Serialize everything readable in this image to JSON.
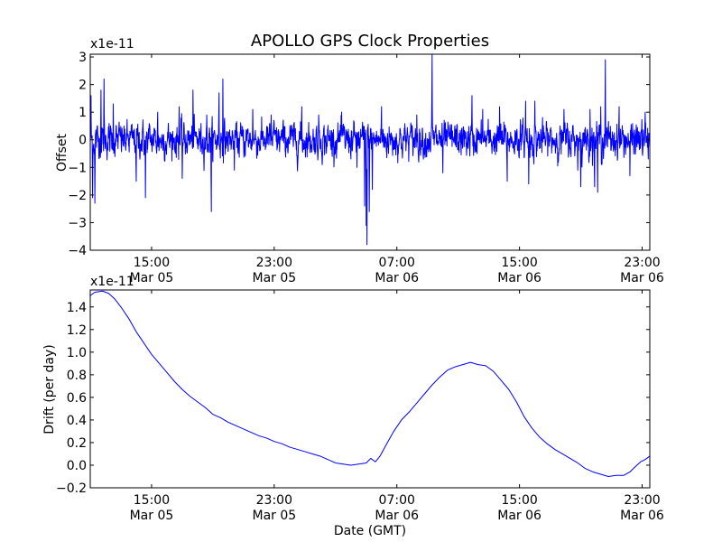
{
  "chart_data": [
    {
      "type": "line",
      "title": "APOLLO GPS Clock Properties",
      "ylabel": "Offset",
      "xlabel": "",
      "scale_label": "x1e-11",
      "x_unit": "hours since 11:00 Mar 05 (GMT)",
      "xlim": [
        0,
        36.5
      ],
      "ylim": [
        -4,
        3.1
      ],
      "yticks": [
        -4,
        -3,
        -2,
        -1,
        0,
        1,
        2,
        3
      ],
      "ytick_labels": [
        "−4",
        "−3",
        "−2",
        "−1",
        "0",
        "1",
        "2",
        "3"
      ],
      "xticks": [
        {
          "x": 4,
          "time": "15:00",
          "date": "Mar 05"
        },
        {
          "x": 12,
          "time": "23:00",
          "date": "Mar 05"
        },
        {
          "x": 20,
          "time": "07:00",
          "date": "Mar 06"
        },
        {
          "x": 28,
          "time": "15:00",
          "date": "Mar 06"
        },
        {
          "x": 36,
          "time": "23:00",
          "date": "Mar 06"
        }
      ],
      "color": "#0000ff",
      "series": [
        {
          "name": "Offset",
          "noise_sigma": 0.35,
          "spikes": [
            [
              0.05,
              1.6
            ],
            [
              0.15,
              -2.1
            ],
            [
              0.3,
              -2.3
            ],
            [
              0.7,
              1.8
            ],
            [
              0.9,
              2.2
            ],
            [
              1.5,
              1.3
            ],
            [
              3.0,
              -1.5
            ],
            [
              3.6,
              -2.1
            ],
            [
              4.4,
              1.0
            ],
            [
              5.8,
              1.2
            ],
            [
              6.0,
              -1.4
            ],
            [
              6.7,
              1.8
            ],
            [
              7.6,
              0.9
            ],
            [
              7.9,
              -2.6
            ],
            [
              8.4,
              1.7
            ],
            [
              8.65,
              2.2
            ],
            [
              9.4,
              -1.1
            ],
            [
              10.6,
              1.1
            ],
            [
              11.8,
              0.9
            ],
            [
              13.8,
              1.2
            ],
            [
              14.9,
              0.9
            ],
            [
              16.4,
              1.0
            ],
            [
              17.4,
              -1.0
            ],
            [
              17.9,
              -2.4
            ],
            [
              18.0,
              -3.1
            ],
            [
              18.05,
              -3.8
            ],
            [
              18.2,
              -2.6
            ],
            [
              18.4,
              -1.8
            ],
            [
              19.0,
              1.2
            ],
            [
              21.3,
              0.9
            ],
            [
              22.3,
              3.1
            ],
            [
              23.0,
              -1.2
            ],
            [
              24.9,
              1.6
            ],
            [
              25.6,
              1.1
            ],
            [
              26.7,
              1.2
            ],
            [
              27.2,
              -1.5
            ],
            [
              28.4,
              1.4
            ],
            [
              28.6,
              -1.6
            ],
            [
              29.0,
              1.4
            ],
            [
              30.9,
              1.1
            ],
            [
              31.8,
              -1.1
            ],
            [
              32.0,
              -1.7
            ],
            [
              32.6,
              1.1
            ],
            [
              32.9,
              -1.7
            ],
            [
              33.1,
              -1.9
            ],
            [
              33.3,
              1.2
            ],
            [
              33.6,
              2.9
            ],
            [
              34.5,
              1.2
            ],
            [
              35.2,
              -1.3
            ],
            [
              36.2,
              1.0
            ],
            [
              36.4,
              -0.7
            ]
          ]
        }
      ]
    },
    {
      "type": "line",
      "title": "",
      "ylabel": "Drift (per day)",
      "xlabel": "Date (GMT)",
      "scale_label": "x1e-11",
      "x_unit": "hours since 11:00 Mar 05 (GMT)",
      "xlim": [
        0,
        36.5
      ],
      "ylim": [
        -0.2,
        1.55
      ],
      "yticks": [
        -0.2,
        0.0,
        0.2,
        0.4,
        0.6,
        0.8,
        1.0,
        1.2,
        1.4
      ],
      "ytick_labels": [
        "−0.2",
        "0.0",
        "0.2",
        "0.4",
        "0.6",
        "0.8",
        "1.0",
        "1.2",
        "1.4"
      ],
      "xticks": [
        {
          "x": 4,
          "time": "15:00",
          "date": "Mar 05"
        },
        {
          "x": 12,
          "time": "23:00",
          "date": "Mar 05"
        },
        {
          "x": 20,
          "time": "07:00",
          "date": "Mar 06"
        },
        {
          "x": 28,
          "time": "15:00",
          "date": "Mar 06"
        },
        {
          "x": 36,
          "time": "23:00",
          "date": "Mar 06"
        }
      ],
      "color": "#0000ff",
      "series": [
        {
          "name": "Drift",
          "points": [
            [
              0.0,
              1.5
            ],
            [
              0.3,
              1.53
            ],
            [
              0.8,
              1.54
            ],
            [
              1.2,
              1.52
            ],
            [
              1.6,
              1.47
            ],
            [
              2.0,
              1.4
            ],
            [
              2.5,
              1.3
            ],
            [
              3.0,
              1.18
            ],
            [
              3.5,
              1.08
            ],
            [
              4.0,
              0.98
            ],
            [
              4.5,
              0.9
            ],
            [
              5.0,
              0.82
            ],
            [
              5.5,
              0.74
            ],
            [
              6.0,
              0.67
            ],
            [
              6.5,
              0.61
            ],
            [
              7.0,
              0.56
            ],
            [
              7.5,
              0.51
            ],
            [
              8.0,
              0.45
            ],
            [
              8.5,
              0.42
            ],
            [
              9.0,
              0.38
            ],
            [
              9.5,
              0.35
            ],
            [
              10.0,
              0.32
            ],
            [
              10.5,
              0.29
            ],
            [
              11.0,
              0.26
            ],
            [
              11.5,
              0.24
            ],
            [
              12.0,
              0.21
            ],
            [
              12.5,
              0.19
            ],
            [
              13.0,
              0.16
            ],
            [
              13.5,
              0.14
            ],
            [
              14.0,
              0.12
            ],
            [
              14.5,
              0.1
            ],
            [
              15.0,
              0.08
            ],
            [
              15.5,
              0.05
            ],
            [
              16.0,
              0.02
            ],
            [
              16.5,
              0.01
            ],
            [
              17.0,
              0.0
            ],
            [
              17.5,
              0.01
            ],
            [
              18.0,
              0.02
            ],
            [
              18.3,
              0.06
            ],
            [
              18.6,
              0.03
            ],
            [
              18.9,
              0.08
            ],
            [
              19.3,
              0.18
            ],
            [
              19.8,
              0.3
            ],
            [
              20.3,
              0.4
            ],
            [
              20.8,
              0.47
            ],
            [
              21.3,
              0.55
            ],
            [
              21.8,
              0.63
            ],
            [
              22.3,
              0.71
            ],
            [
              22.8,
              0.78
            ],
            [
              23.3,
              0.84
            ],
            [
              23.8,
              0.87
            ],
            [
              24.3,
              0.89
            ],
            [
              24.8,
              0.91
            ],
            [
              25.3,
              0.89
            ],
            [
              25.8,
              0.88
            ],
            [
              26.3,
              0.83
            ],
            [
              26.8,
              0.75
            ],
            [
              27.3,
              0.67
            ],
            [
              27.8,
              0.56
            ],
            [
              28.3,
              0.43
            ],
            [
              28.8,
              0.33
            ],
            [
              29.3,
              0.25
            ],
            [
              29.8,
              0.19
            ],
            [
              30.3,
              0.14
            ],
            [
              30.8,
              0.1
            ],
            [
              31.3,
              0.06
            ],
            [
              31.8,
              0.02
            ],
            [
              32.3,
              -0.03
            ],
            [
              32.8,
              -0.06
            ],
            [
              33.3,
              -0.08
            ],
            [
              33.8,
              -0.1
            ],
            [
              34.3,
              -0.09
            ],
            [
              34.8,
              -0.09
            ],
            [
              35.2,
              -0.06
            ],
            [
              35.5,
              -0.02
            ],
            [
              35.9,
              0.03
            ],
            [
              36.2,
              0.05
            ],
            [
              36.5,
              0.08
            ]
          ]
        }
      ]
    }
  ]
}
